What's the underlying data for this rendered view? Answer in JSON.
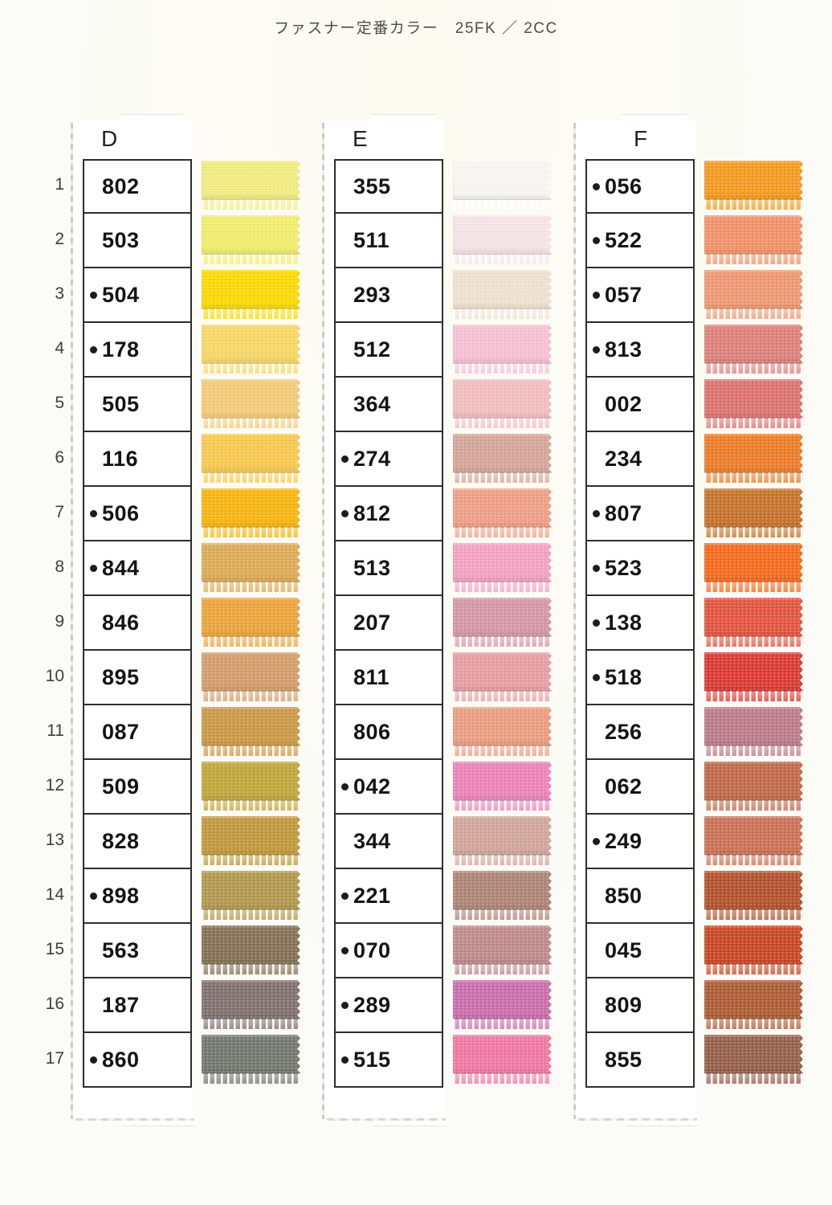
{
  "title": "ファスナー定番カラー　25FK ／ 2CC",
  "row_numbers": [
    "1",
    "2",
    "3",
    "4",
    "5",
    "6",
    "7",
    "8",
    "9",
    "10",
    "11",
    "12",
    "13",
    "14",
    "15",
    "16",
    "17"
  ],
  "columns": [
    {
      "label": "D",
      "rows": [
        {
          "code": "802",
          "dot": false,
          "color": "#f3ee82"
        },
        {
          "code": "503",
          "dot": false,
          "color": "#f2ef6e"
        },
        {
          "code": "504",
          "dot": true,
          "color": "#fcdb05"
        },
        {
          "code": "178",
          "dot": true,
          "color": "#f9d967"
        },
        {
          "code": "505",
          "dot": false,
          "color": "#f5cd7a"
        },
        {
          "code": "116",
          "dot": false,
          "color": "#f9cb50"
        },
        {
          "code": "506",
          "dot": true,
          "color": "#f9b713"
        },
        {
          "code": "844",
          "dot": true,
          "color": "#deac57"
        },
        {
          "code": "846",
          "dot": false,
          "color": "#eda63d"
        },
        {
          "code": "895",
          "dot": false,
          "color": "#d5a06c"
        },
        {
          "code": "087",
          "dot": false,
          "color": "#cd9b47"
        },
        {
          "code": "509",
          "dot": false,
          "color": "#c3a83e"
        },
        {
          "code": "828",
          "dot": false,
          "color": "#c39a3e"
        },
        {
          "code": "898",
          "dot": true,
          "color": "#b39a4f"
        },
        {
          "code": "563",
          "dot": false,
          "color": "#867456"
        },
        {
          "code": "187",
          "dot": false,
          "color": "#847370"
        },
        {
          "code": "860",
          "dot": true,
          "color": "#767a6f"
        }
      ]
    },
    {
      "label": "E",
      "rows": [
        {
          "code": "355",
          "dot": false,
          "color": "#faf8f4"
        },
        {
          "code": "511",
          "dot": false,
          "color": "#f8e5ea"
        },
        {
          "code": "293",
          "dot": false,
          "color": "#f1e3d1"
        },
        {
          "code": "512",
          "dot": false,
          "color": "#f8c2d5"
        },
        {
          "code": "364",
          "dot": false,
          "color": "#f4bfc1"
        },
        {
          "code": "274",
          "dot": true,
          "color": "#d7a89a"
        },
        {
          "code": "812",
          "dot": true,
          "color": "#f1a189"
        },
        {
          "code": "513",
          "dot": false,
          "color": "#f5a3c3"
        },
        {
          "code": "207",
          "dot": false,
          "color": "#d699a9"
        },
        {
          "code": "811",
          "dot": false,
          "color": "#e9a0a5"
        },
        {
          "code": "806",
          "dot": false,
          "color": "#ec9f84"
        },
        {
          "code": "042",
          "dot": true,
          "color": "#ef85bb"
        },
        {
          "code": "344",
          "dot": false,
          "color": "#d3a89c"
        },
        {
          "code": "221",
          "dot": true,
          "color": "#b08678"
        },
        {
          "code": "070",
          "dot": true,
          "color": "#c18c8e"
        },
        {
          "code": "289",
          "dot": true,
          "color": "#cd70ae"
        },
        {
          "code": "515",
          "dot": true,
          "color": "#f27aa5"
        }
      ]
    },
    {
      "label": "F",
      "rows": [
        {
          "code": "056",
          "dot": true,
          "color": "#f69d22"
        },
        {
          "code": "522",
          "dot": true,
          "color": "#f4946c"
        },
        {
          "code": "057",
          "dot": true,
          "color": "#f09b74"
        },
        {
          "code": "813",
          "dot": true,
          "color": "#e0837c"
        },
        {
          "code": "002",
          "dot": false,
          "color": "#de7573"
        },
        {
          "code": "234",
          "dot": false,
          "color": "#ee7f2b"
        },
        {
          "code": "807",
          "dot": true,
          "color": "#c8762f"
        },
        {
          "code": "523",
          "dot": true,
          "color": "#f76d1f"
        },
        {
          "code": "138",
          "dot": true,
          "color": "#e45742"
        },
        {
          "code": "518",
          "dot": true,
          "color": "#dd3d35"
        },
        {
          "code": "256",
          "dot": false,
          "color": "#bd7e8b"
        },
        {
          "code": "062",
          "dot": false,
          "color": "#c26c4b"
        },
        {
          "code": "249",
          "dot": true,
          "color": "#cd7459"
        },
        {
          "code": "850",
          "dot": false,
          "color": "#b5552f"
        },
        {
          "code": "045",
          "dot": false,
          "color": "#cb4a28"
        },
        {
          "code": "809",
          "dot": false,
          "color": "#b05f37"
        },
        {
          "code": "855",
          "dot": false,
          "color": "#99624e"
        }
      ]
    }
  ]
}
